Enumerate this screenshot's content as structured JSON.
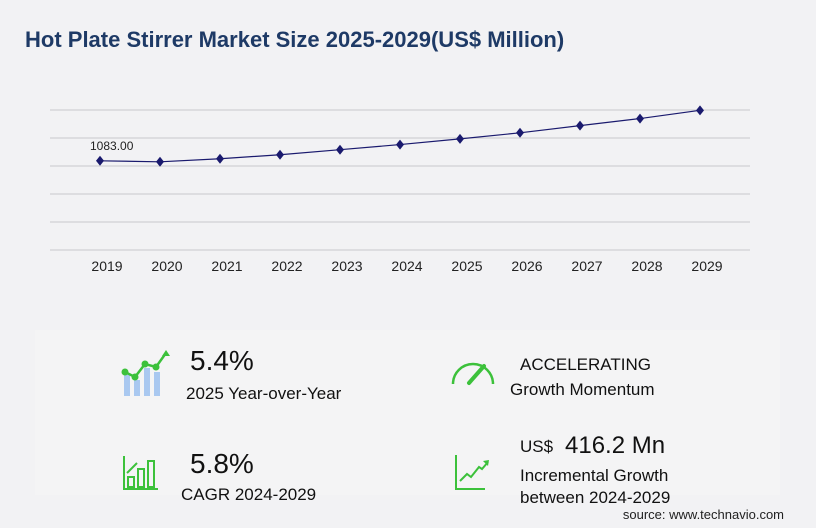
{
  "title": "Hot Plate Stirrer Market Size 2025-2029(US$ Million)",
  "chart_data": {
    "type": "line",
    "categories": [
      "2019",
      "2020",
      "2021",
      "2022",
      "2023",
      "2024",
      "2025",
      "2026",
      "2027",
      "2028",
      "2029"
    ],
    "values": [
      1083.0,
      1071,
      1108,
      1157,
      1218,
      1280,
      1349,
      1423,
      1510,
      1596,
      1696
    ],
    "data_labels": {
      "2019": "1083.00"
    },
    "ylim": [
      0,
      1700
    ],
    "grid": true,
    "line_color": "#1a1a6e",
    "marker": "diamond"
  },
  "stats": {
    "yoy_value": "5.4%",
    "yoy_label": "2025 Year-over-Year",
    "momentum_value": "ACCELERATING",
    "momentum_label": "Growth Momentum",
    "cagr_value": "5.8%",
    "cagr_label": "CAGR 2024-2029",
    "incr_currency": "US$",
    "incr_value": "416.2 Mn",
    "incr_label1": "Incremental Growth",
    "incr_label2": "between 2024-2029"
  },
  "source": "source: www.technavio.com",
  "colors": {
    "accent_green": "#3cc13b",
    "bar_blue": "#a9c8f0",
    "title": "#1e3a66"
  }
}
